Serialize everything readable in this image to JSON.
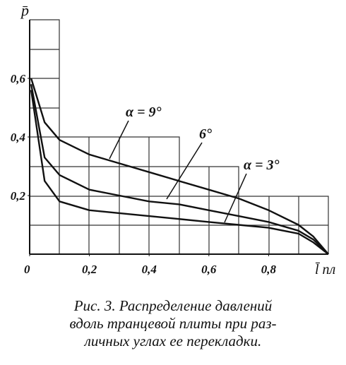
{
  "chart_data": {
    "type": "line",
    "ylabel": "p̄",
    "xlabel": "l̄ пл",
    "x": [
      0.005,
      0.05,
      0.1,
      0.2,
      0.3,
      0.4,
      0.5,
      0.6,
      0.7,
      0.8,
      0.9,
      0.95,
      1.0
    ],
    "series": [
      {
        "name": "α = 9°",
        "color": "#111",
        "values": [
          0.6,
          0.45,
          0.39,
          0.34,
          0.31,
          0.28,
          0.25,
          0.22,
          0.19,
          0.15,
          0.1,
          0.06,
          0
        ]
      },
      {
        "name": "6°",
        "color": "#111",
        "values": [
          0.58,
          0.33,
          0.27,
          0.22,
          0.2,
          0.18,
          0.17,
          0.15,
          0.13,
          0.11,
          0.08,
          0.05,
          0
        ]
      },
      {
        "name": "α = 3°",
        "color": "#111",
        "values": [
          0.56,
          0.25,
          0.18,
          0.15,
          0.14,
          0.13,
          0.12,
          0.11,
          0.1,
          0.09,
          0.07,
          0.04,
          0
        ]
      }
    ],
    "xlim": [
      0,
      1
    ],
    "ylim": [
      0,
      0.8
    ],
    "xticks": [
      0,
      {
        "value": 0.2,
        "label": "0,2"
      },
      {
        "value": 0.4,
        "label": "0,4"
      },
      {
        "value": 0.6,
        "label": "0,6"
      },
      {
        "value": 0.8,
        "label": "0,8"
      }
    ],
    "yticks": [
      {
        "value": 0.2,
        "label": "0,2"
      },
      {
        "value": 0.4,
        "label": "0,4"
      },
      {
        "value": 0.6,
        "label": "0,6"
      }
    ],
    "caption": [
      "Рис. 3. Распределение давлений",
      "вдоль транцевой плиты при раз-",
      "личных углах ее перекладки."
    ]
  }
}
